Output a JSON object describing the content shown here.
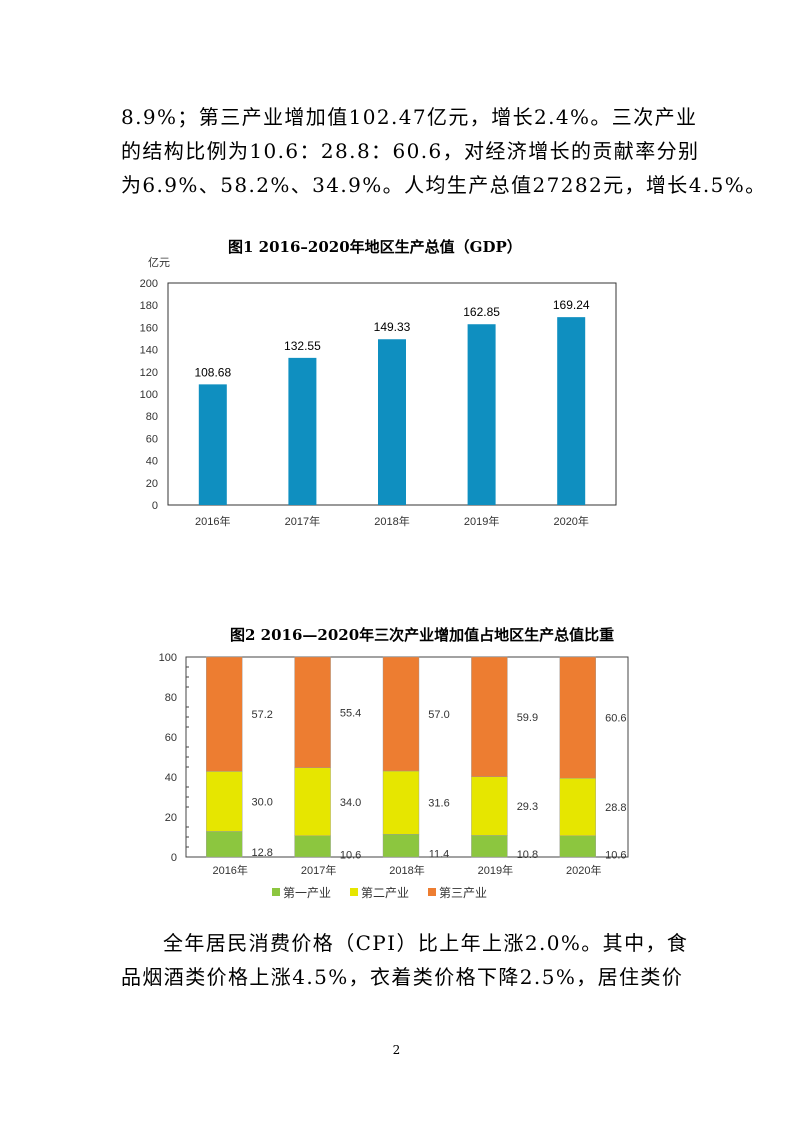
{
  "top_paragraph": [
    "8.9%；第三产业增加值102.47亿元，增长2.4%。三次产业",
    "的结构比例为10.6：28.8：60.6，对经济增长的贡献率分别",
    "为6.9%、58.2%、34.9%。人均生产总值27282元，增长4.5%。"
  ],
  "bottom_paragraph": [
    "全年居民消费价格（CPI）比上年上涨2.0%。其中，食",
    "品烟酒类价格上涨4.5%，衣着类价格下降2.5%，居住类价"
  ],
  "page_number": "2",
  "chart_data": [
    {
      "type": "bar",
      "title": "图1  2016–2020年地区生产总值（GDP）",
      "ylabel": "亿元",
      "categories": [
        "2016年",
        "2017年",
        "2018年",
        "2019年",
        "2020年"
      ],
      "values": [
        108.68,
        132.55,
        149.33,
        162.85,
        169.24
      ],
      "value_labels": [
        "108.68",
        "132.55",
        "149.33",
        "162.85",
        "169.24"
      ],
      "ylim": [
        0,
        200
      ],
      "yticks": [
        0,
        20,
        40,
        60,
        80,
        100,
        120,
        140,
        160,
        180,
        200
      ],
      "color": "#0f8fc0",
      "grid": false
    },
    {
      "type": "bar",
      "stacked": true,
      "title": "图2 2016—2020年三次产业增加值占地区生产总值比重",
      "categories": [
        "2016年",
        "2017年",
        "2018年",
        "2019年",
        "2020年"
      ],
      "ylim": [
        0,
        100
      ],
      "yticks": [
        0,
        20,
        40,
        60,
        80,
        100
      ],
      "legend_position": "bottom",
      "series": [
        {
          "name": "第一产业",
          "values": [
            12.8,
            10.6,
            11.4,
            10.8,
            10.6
          ],
          "labels": [
            "12.8",
            "10.6",
            "11.4",
            "10.8",
            "10.6"
          ],
          "color": "#8cc63f"
        },
        {
          "name": "第二产业",
          "values": [
            30.0,
            34.0,
            31.6,
            29.3,
            28.8
          ],
          "labels": [
            "30.0",
            "34.0",
            "31.6",
            "29.3",
            "28.8"
          ],
          "color": "#e6e600"
        },
        {
          "name": "第三产业",
          "values": [
            57.2,
            55.4,
            57.0,
            59.9,
            60.6
          ],
          "labels": [
            "57.2",
            "55.4",
            "57.0",
            "59.9",
            "60.6"
          ],
          "color": "#ed7d31"
        }
      ],
      "grid": false
    }
  ]
}
